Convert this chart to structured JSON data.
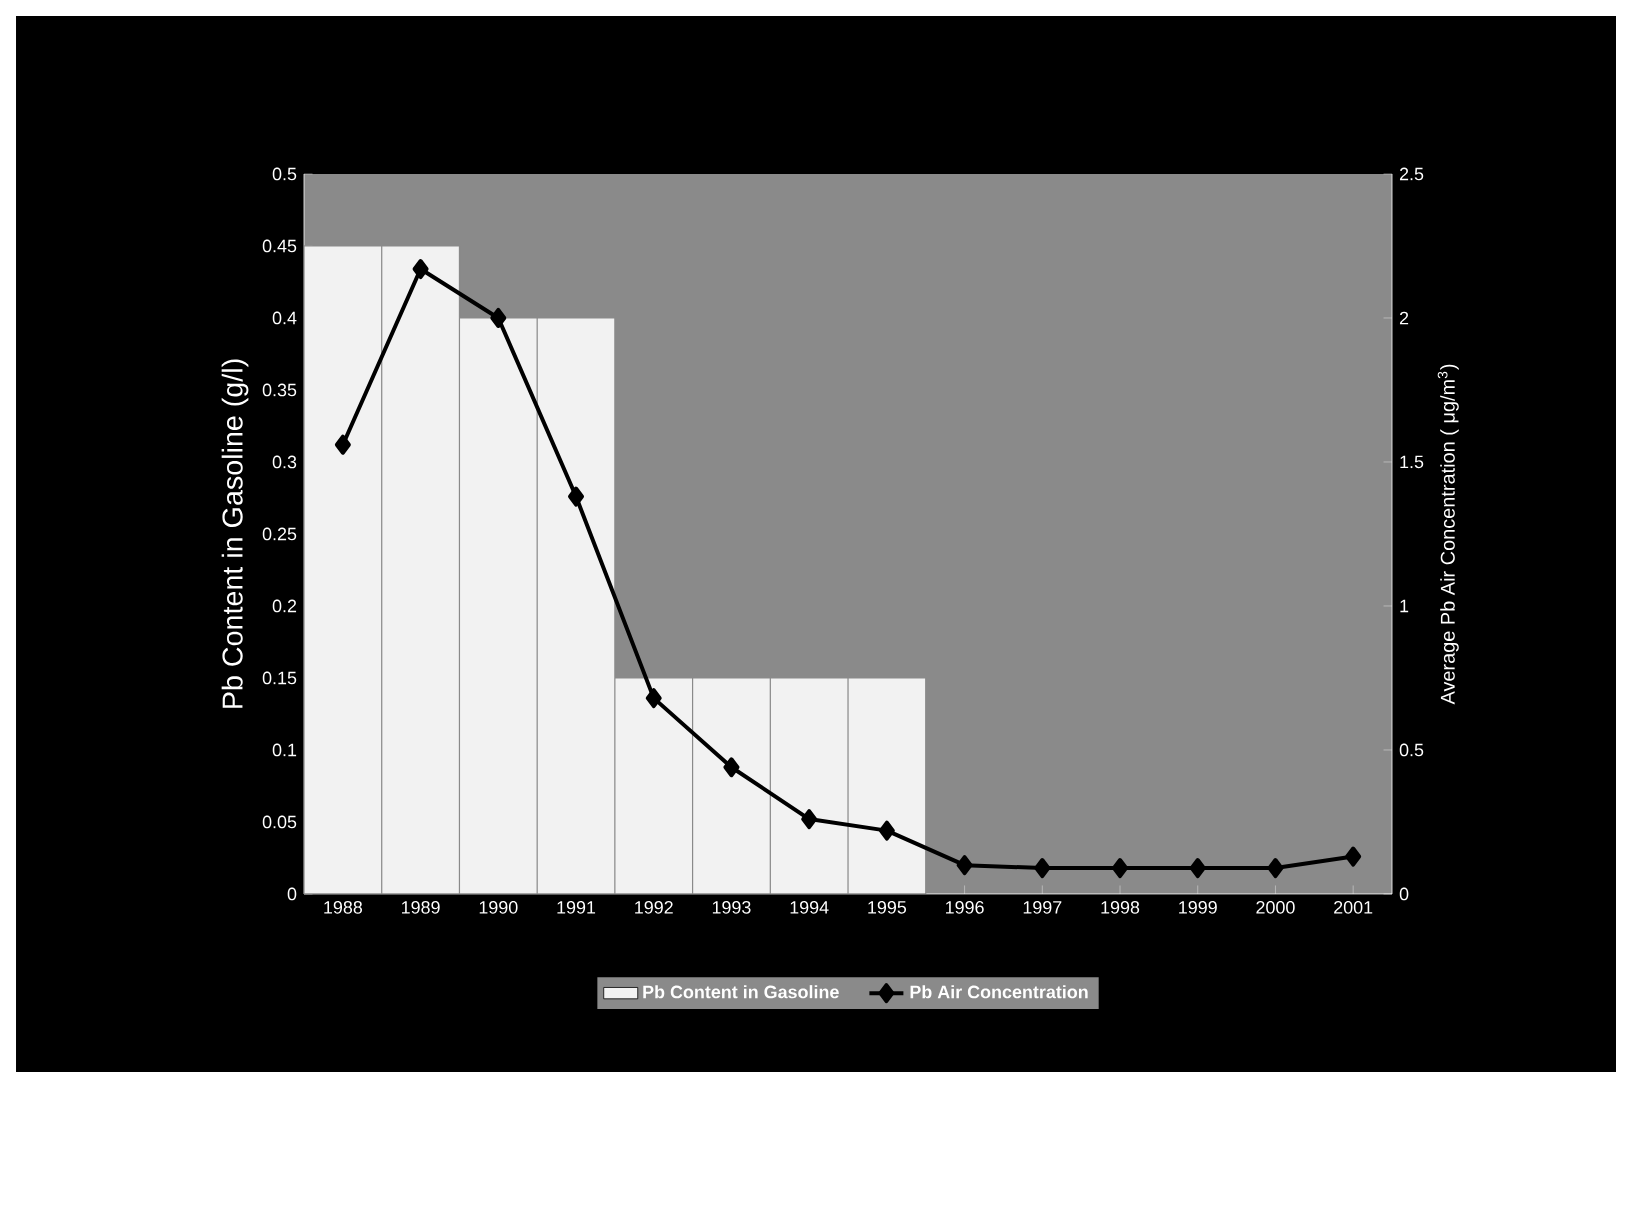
{
  "chart_data": {
    "type": "bar",
    "categories": [
      "1988",
      "1989",
      "1990",
      "1991",
      "1992",
      "1993",
      "1994",
      "1995",
      "1996",
      "1997",
      "1998",
      "1999",
      "2000",
      "2001"
    ],
    "ylabel": "Pb Content in Gasoline (g/l)",
    "y2label": "Average Pb Air Concentration ( μg/m$^{3}$)",
    "ylim": [
      0,
      0.5
    ],
    "yticks": [
      0,
      0.05,
      0.1,
      0.15,
      0.2,
      0.25,
      0.3,
      0.35,
      0.4,
      0.45,
      0.5
    ],
    "y2lim": [
      0,
      2.5
    ],
    "y2ticks": [
      0,
      0.5,
      1,
      1.5,
      2,
      2.5
    ],
    "legend": "bottom",
    "marker": "diamond",
    "line_style": "solid",
    "series": [
      {
        "name": "Pb Content in Gasoline",
        "color": "#f2f2f2",
        "values": [
          0.45,
          0.45,
          0.4,
          0.4,
          0.15,
          0.15,
          0.15,
          0.15,
          null,
          null,
          null,
          null,
          null,
          null
        ]
      },
      {
        "name": "Pb Air Concentration",
        "type": "line",
        "axis": "y2",
        "color": "#000000",
        "values": [
          1.56,
          2.17,
          2.0,
          1.38,
          0.68,
          0.44,
          0.26,
          0.22,
          0.1,
          0.09,
          0.09,
          0.09,
          0.09,
          0.13
        ]
      }
    ]
  }
}
